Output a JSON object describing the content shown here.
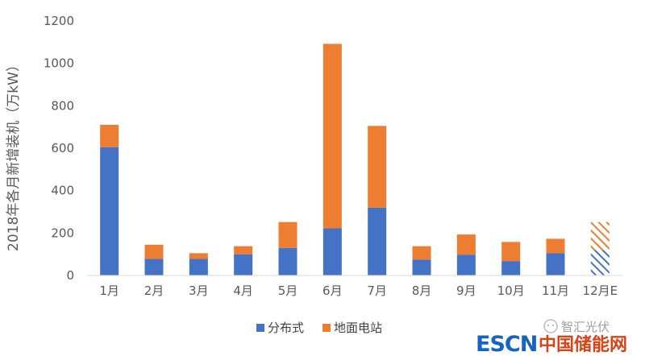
{
  "chart_data": {
    "type": "bar",
    "stacked": true,
    "ylabel": "2018年各月新增装机（万kW）",
    "ylim": [
      0,
      1200
    ],
    "yticks": [
      0,
      200,
      400,
      600,
      800,
      1000,
      1200
    ],
    "grid": false,
    "legend_position": "bottom",
    "categories": [
      "1月",
      "2月",
      "3月",
      "4月",
      "5月",
      "6月",
      "7月",
      "8月",
      "9月",
      "10月",
      "11月",
      "12月E"
    ],
    "series": [
      {
        "name": "分布式",
        "color": "#4472c4",
        "values": [
          605,
          78,
          78,
          100,
          130,
          222,
          320,
          75,
          98,
          68,
          105,
          120
        ]
      },
      {
        "name": "地面电站",
        "color": "#ed7d31",
        "values": [
          105,
          67,
          27,
          38,
          122,
          870,
          385,
          63,
          95,
          90,
          68,
          132
        ]
      }
    ],
    "estimated_categories": [
      "12月E"
    ]
  },
  "watermark": {
    "wechat_text": "智汇光伏",
    "site_latin": "ESCN",
    "site_cn": "中国储能网"
  }
}
